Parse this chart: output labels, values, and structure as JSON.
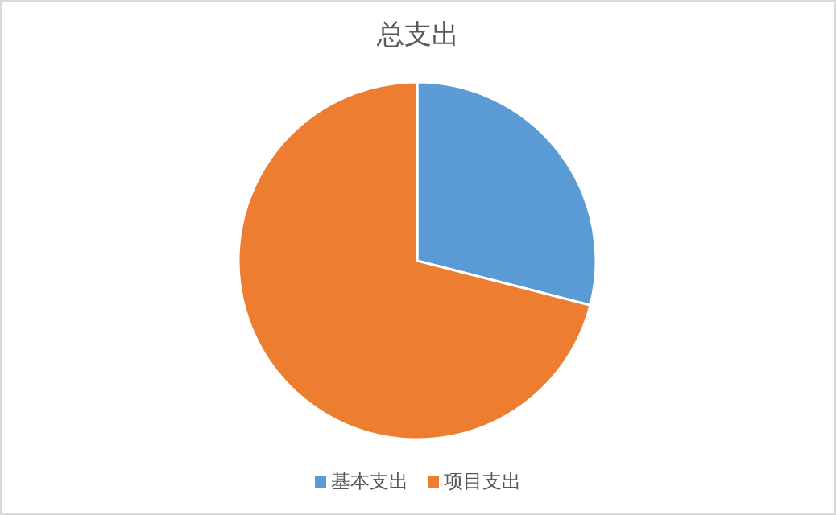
{
  "chart_data": {
    "type": "pie",
    "title": "总支出",
    "categories": [
      "基本支出",
      "项目支出"
    ],
    "values": [
      29,
      71
    ],
    "colors": [
      "#5b9bd5",
      "#ed7d31"
    ],
    "legend": "bottom"
  }
}
